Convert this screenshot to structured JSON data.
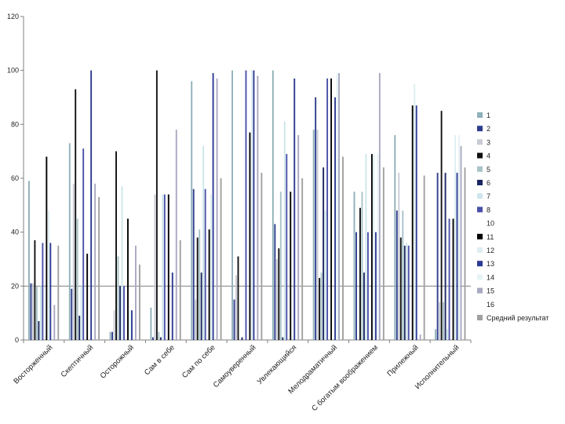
{
  "chart_data": {
    "type": "bar",
    "title": "",
    "xlabel": "",
    "ylabel": "",
    "ylim": [
      0,
      120
    ],
    "yticks": [
      0,
      20,
      40,
      60,
      80,
      100,
      120
    ],
    "reference_line": 20,
    "grid": false,
    "legend_position": "right",
    "categories": [
      "Восторженный",
      "Скептичный",
      "Осторожный",
      "Сам в себе",
      "Сам по себе",
      "Самоуверенный",
      "Увлекающийся",
      "Мелодраматичный",
      "С богатым воображением",
      "Прилежный",
      "Исполнительный"
    ],
    "series": [
      {
        "name": "1",
        "color": "#8fb0b8",
        "values": [
          59,
          73,
          3,
          12,
          96,
          100,
          100,
          78,
          55,
          76,
          4
        ]
      },
      {
        "name": "2",
        "color": "#2e3c8c",
        "values": [
          21,
          19,
          3,
          1,
          56,
          15,
          43,
          90,
          40,
          48,
          62
        ]
      },
      {
        "name": "3",
        "color": "#c9ccd6",
        "values": [
          21,
          58,
          11,
          54,
          15,
          24,
          30,
          78,
          0,
          62,
          14
        ]
      },
      {
        "name": "4",
        "color": "#101010",
        "values": [
          37,
          93,
          70,
          100,
          38,
          31,
          34,
          23,
          49,
          38,
          85
        ]
      },
      {
        "name": "5",
        "color": "#a8c4c8",
        "values": [
          20,
          45,
          31,
          3,
          41,
          0,
          55,
          25,
          55,
          48,
          14
        ]
      },
      {
        "name": "6",
        "color": "#1b2660",
        "values": [
          7,
          9,
          20,
          1,
          25,
          1,
          1,
          64,
          25,
          35,
          62
        ]
      },
      {
        "name": "7",
        "color": "#cde6ea",
        "values": [
          20,
          20,
          57,
          54,
          72,
          0,
          81,
          48,
          69,
          36,
          4
        ]
      },
      {
        "name": "8",
        "color": "#4a50a8",
        "values": [
          36,
          71,
          20,
          54,
          56,
          100,
          69,
          97,
          40,
          35,
          45
        ]
      },
      {
        "name": "10",
        "color": "#ffffff",
        "values": [
          0,
          0,
          0,
          0,
          0,
          0,
          0,
          0,
          0,
          0,
          0
        ]
      },
      {
        "name": "11",
        "color": "#000000",
        "values": [
          68,
          32,
          45,
          54,
          41,
          77,
          55,
          97,
          69,
          87,
          45
        ]
      },
      {
        "name": "12",
        "color": "#ddeff0",
        "values": [
          48,
          0,
          11,
          0,
          54,
          100,
          0,
          0,
          69,
          95,
          76
        ]
      },
      {
        "name": "13",
        "color": "#2c3a94",
        "values": [
          36,
          100,
          11,
          25,
          99,
          100,
          97,
          90,
          40,
          87,
          62
        ]
      },
      {
        "name": "14",
        "color": "#e6f2f4",
        "values": [
          0,
          0,
          0,
          0,
          0,
          0,
          0,
          99,
          69,
          0,
          76
        ]
      },
      {
        "name": "15",
        "color": "#a8a8c0",
        "values": [
          13,
          58,
          35,
          78,
          97,
          98,
          76,
          99,
          99,
          2,
          72
        ]
      },
      {
        "name": "16",
        "color": "#ffffff",
        "values": [
          0,
          0,
          0,
          0,
          0,
          0,
          0,
          0,
          0,
          0,
          0
        ]
      },
      {
        "name": "Средний результат",
        "color": "#a0a0a0",
        "values": [
          35,
          53,
          28,
          37,
          60,
          62,
          60,
          68,
          64,
          61,
          64
        ]
      }
    ]
  }
}
